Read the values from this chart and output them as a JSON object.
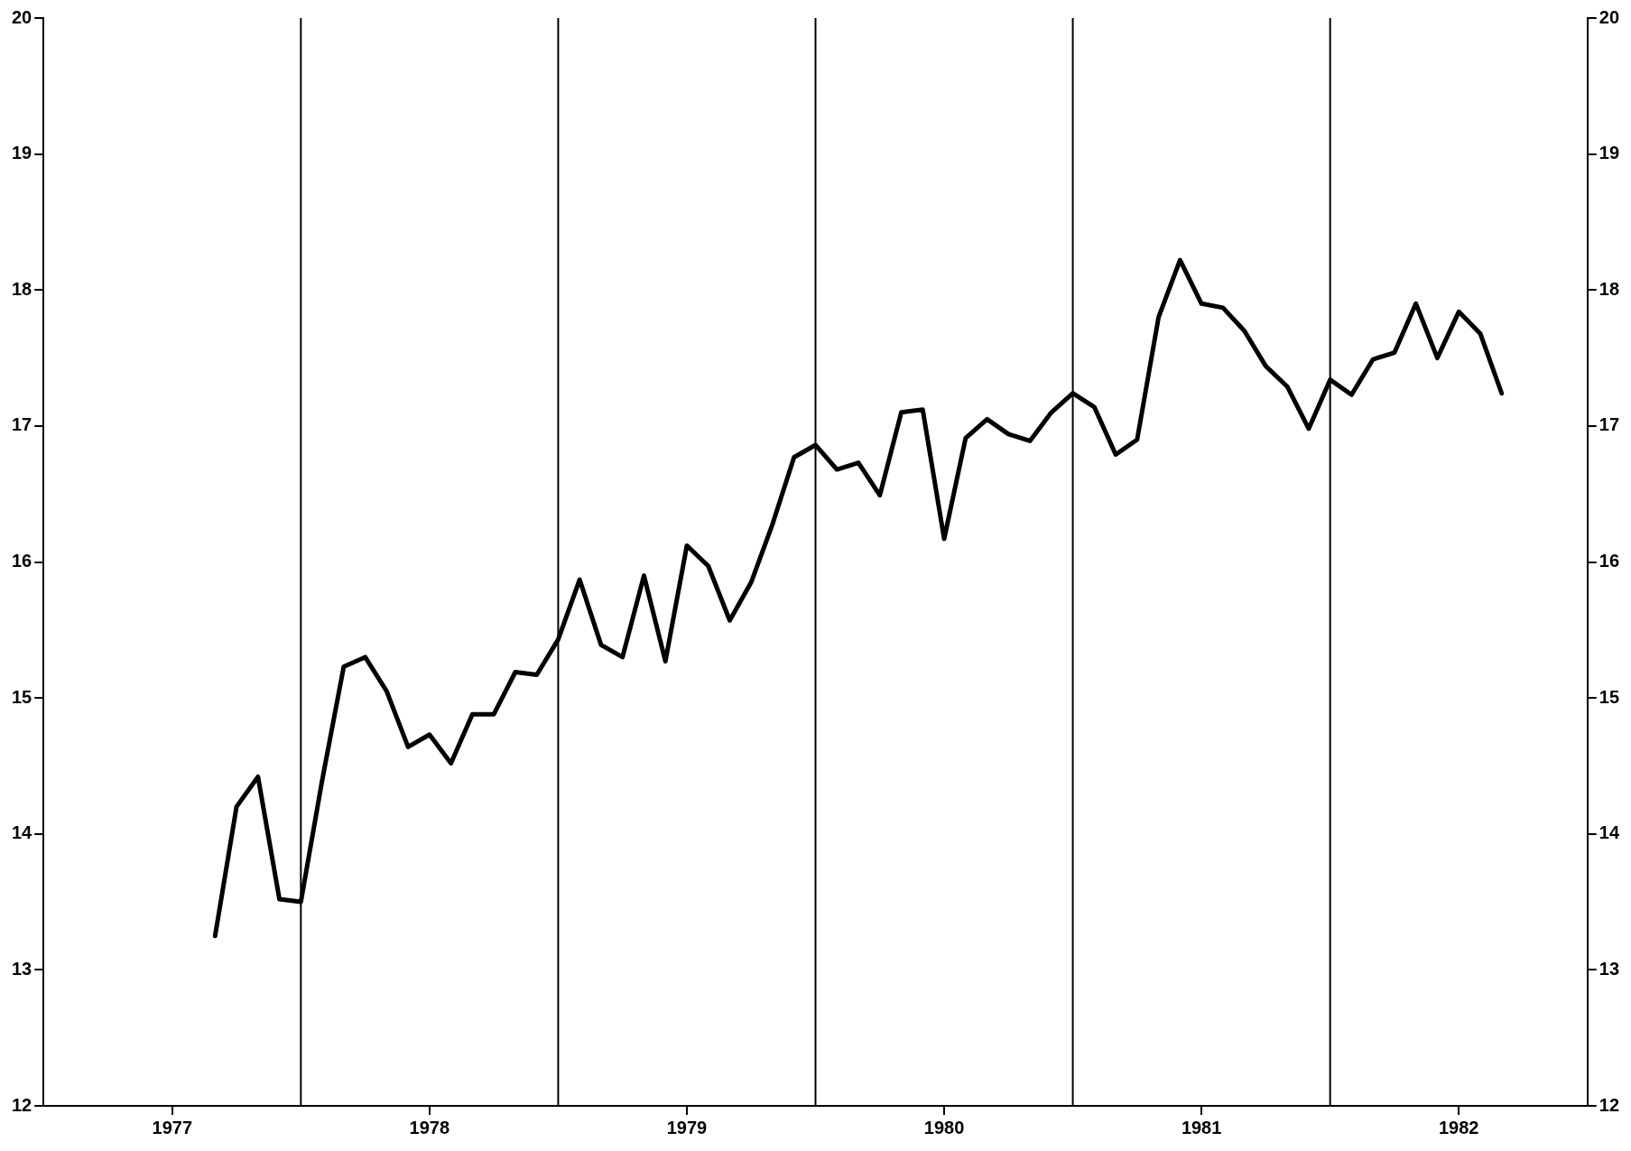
{
  "chart_data": {
    "type": "line",
    "color": "#000000",
    "line_style": "solid",
    "marker": "none",
    "grid": false,
    "legend": false,
    "x": [
      "1977-09",
      "1977-10",
      "1977-11",
      "1977-12",
      "1978-01",
      "1978-02",
      "1978-03",
      "1978-04",
      "1978-05",
      "1978-06",
      "1978-07",
      "1978-08",
      "1978-09",
      "1978-10",
      "1978-11",
      "1978-12",
      "1979-01",
      "1979-02",
      "1979-03",
      "1979-04",
      "1979-05",
      "1979-06",
      "1979-07",
      "1979-08",
      "1979-09",
      "1979-10",
      "1979-11",
      "1979-12",
      "1980-01",
      "1980-02",
      "1980-03",
      "1980-04",
      "1980-05",
      "1980-06",
      "1980-07",
      "1980-08",
      "1980-09",
      "1980-10",
      "1980-11",
      "1980-12",
      "1981-01",
      "1981-02",
      "1981-03",
      "1981-04",
      "1981-05",
      "1981-06",
      "1981-07",
      "1981-08",
      "1981-09",
      "1981-10",
      "1981-11",
      "1981-12",
      "1982-01",
      "1982-02",
      "1982-03",
      "1982-04",
      "1982-05",
      "1982-06",
      "1982-07",
      "1982-08",
      "1982-09"
    ],
    "values": [
      13.25,
      14.2,
      14.42,
      13.52,
      13.5,
      14.4,
      15.23,
      15.3,
      15.05,
      14.64,
      14.73,
      14.52,
      14.88,
      14.88,
      15.19,
      15.17,
      15.43,
      15.87,
      15.39,
      15.3,
      15.9,
      15.27,
      16.12,
      15.97,
      15.57,
      15.85,
      16.28,
      16.77,
      16.86,
      16.68,
      16.73,
      16.49,
      17.1,
      17.12,
      16.17,
      16.91,
      17.05,
      16.94,
      16.89,
      17.1,
      17.24,
      17.14,
      16.79,
      16.9,
      17.8,
      18.22,
      17.9,
      17.87,
      17.7,
      17.44,
      17.29,
      16.98,
      17.34,
      17.23,
      17.49,
      17.54,
      17.9,
      17.5,
      17.84,
      17.68,
      17.24
    ],
    "xlim": [
      "1977-01",
      "1983-01"
    ],
    "xticks": [
      {
        "value": "1977-07",
        "label": "1977"
      },
      {
        "value": "1978-07",
        "label": "1978"
      },
      {
        "value": "1979-07",
        "label": "1979"
      },
      {
        "value": "1980-07",
        "label": "1980"
      },
      {
        "value": "1981-07",
        "label": "1981"
      },
      {
        "value": "1982-07",
        "label": "1982"
      }
    ],
    "ylim": [
      12,
      20
    ],
    "yticks": [
      12,
      13,
      14,
      15,
      16,
      17,
      18,
      19,
      20
    ],
    "y2lim": [
      12,
      20
    ],
    "y2ticks": [
      12,
      13,
      14,
      15,
      16,
      17,
      18,
      19,
      20
    ],
    "ref_lines": [
      {
        "axis": "x",
        "value": "1978-01",
        "color": "#000000"
      },
      {
        "axis": "x",
        "value": "1979-01",
        "color": "#000000"
      },
      {
        "axis": "x",
        "value": "1980-01",
        "color": "#000000"
      },
      {
        "axis": "x",
        "value": "1981-01",
        "color": "#000000"
      },
      {
        "axis": "x",
        "value": "1982-01",
        "color": "#000000"
      }
    ]
  }
}
